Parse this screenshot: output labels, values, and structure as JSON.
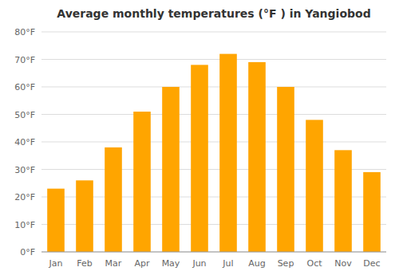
{
  "chart_data": {
    "type": "bar",
    "title": "Average monthly temperatures (°F ) in Yangiobod",
    "categories": [
      "Jan",
      "Feb",
      "Mar",
      "Apr",
      "May",
      "Jun",
      "Jul",
      "Aug",
      "Sep",
      "Oct",
      "Nov",
      "Dec"
    ],
    "values": [
      23,
      26,
      38,
      51,
      60,
      68,
      72,
      69,
      60,
      48,
      37,
      29
    ],
    "color": "#FFA500",
    "ylim": [
      0,
      80
    ],
    "yticks": [
      {
        "value": 0,
        "label": "0°F"
      },
      {
        "value": 10,
        "label": "10°F"
      },
      {
        "value": 20,
        "label": "20°F"
      },
      {
        "value": 30,
        "label": "30°F"
      },
      {
        "value": 40,
        "label": "40°F"
      },
      {
        "value": 50,
        "label": "50°F"
      },
      {
        "value": 60,
        "label": "60°F"
      },
      {
        "value": 70,
        "label": "70°F"
      },
      {
        "value": 80,
        "label": "80°F"
      }
    ],
    "grid": true
  }
}
